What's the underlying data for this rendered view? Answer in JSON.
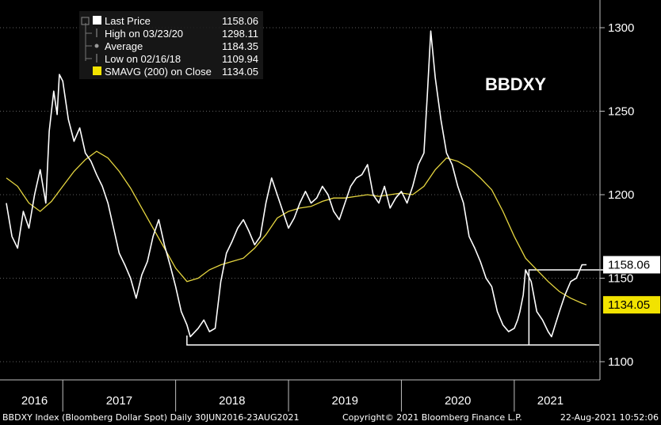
{
  "chart_data": {
    "type": "line",
    "title": "BBDXY",
    "colors": {
      "background": "#000000",
      "price": "#ffffff",
      "sma": "#e6d640",
      "grid": "#606060",
      "badge_sma": "#f2e300"
    },
    "y_axis": {
      "side": "right",
      "ylim": [
        1090,
        1320
      ],
      "ticks": [
        1100,
        1150,
        1200,
        1250,
        1300
      ]
    },
    "x_axis": {
      "labels": [
        "2016",
        "2017",
        "2018",
        "2019",
        "2020",
        "2021"
      ],
      "xlim": [
        2016.5,
        2021.64
      ]
    },
    "grid": true,
    "legend": {
      "placement": "top-left",
      "items": [
        {
          "label": "Last Price",
          "value": "1158.06",
          "icon": "filled-square-icon"
        },
        {
          "label": "High on 03/23/20",
          "value": "1298.11",
          "icon": "high-marker-icon"
        },
        {
          "label": "Average",
          "value": "1184.35",
          "icon": "average-marker-icon"
        },
        {
          "label": "Low on 02/16/18",
          "value": "1109.94",
          "icon": "low-marker-icon"
        },
        {
          "label": "SMAVG (200)  on Close",
          "value": "1134.05",
          "icon": "yellow-square-icon"
        }
      ]
    },
    "badges": {
      "last_price": "1158.06",
      "sma": "1134.05"
    },
    "series": [
      {
        "name": "Last Price",
        "x": [
          2016.5,
          2016.55,
          2016.6,
          2016.65,
          2016.7,
          2016.75,
          2016.8,
          2016.85,
          2016.88,
          2016.92,
          2016.95,
          2016.97,
          2017.0,
          2017.05,
          2017.1,
          2017.15,
          2017.2,
          2017.25,
          2017.3,
          2017.35,
          2017.4,
          2017.45,
          2017.5,
          2017.55,
          2017.6,
          2017.65,
          2017.7,
          2017.75,
          2017.8,
          2017.85,
          2017.9,
          2017.95,
          2018.0,
          2018.05,
          2018.1,
          2018.13,
          2018.2,
          2018.25,
          2018.3,
          2018.35,
          2018.4,
          2018.45,
          2018.5,
          2018.55,
          2018.6,
          2018.65,
          2018.7,
          2018.75,
          2018.8,
          2018.85,
          2018.9,
          2018.95,
          2019.0,
          2019.05,
          2019.1,
          2019.15,
          2019.2,
          2019.25,
          2019.3,
          2019.35,
          2019.4,
          2019.45,
          2019.5,
          2019.55,
          2019.6,
          2019.65,
          2019.7,
          2019.75,
          2019.8,
          2019.85,
          2019.9,
          2019.95,
          2020.0,
          2020.05,
          2020.1,
          2020.15,
          2020.2,
          2020.23,
          2020.26,
          2020.3,
          2020.35,
          2020.4,
          2020.45,
          2020.5,
          2020.55,
          2020.6,
          2020.65,
          2020.7,
          2020.75,
          2020.8,
          2020.85,
          2020.9,
          2020.95,
          2021.0,
          2021.03,
          2021.05,
          2021.08,
          2021.1,
          2021.15,
          2021.2,
          2021.25,
          2021.3,
          2021.33,
          2021.4,
          2021.45,
          2021.5,
          2021.55,
          2021.6,
          2021.64
        ],
        "values": [
          1195,
          1175,
          1168,
          1190,
          1180,
          1200,
          1215,
          1195,
          1238,
          1262,
          1248,
          1272,
          1268,
          1245,
          1232,
          1240,
          1225,
          1220,
          1212,
          1205,
          1195,
          1180,
          1165,
          1158,
          1150,
          1138,
          1152,
          1160,
          1175,
          1185,
          1170,
          1158,
          1145,
          1130,
          1122,
          1115,
          1120,
          1125,
          1118,
          1120,
          1148,
          1165,
          1172,
          1180,
          1185,
          1178,
          1170,
          1175,
          1195,
          1210,
          1200,
          1190,
          1180,
          1186,
          1195,
          1202,
          1195,
          1198,
          1205,
          1200,
          1190,
          1185,
          1195,
          1205,
          1210,
          1212,
          1218,
          1200,
          1195,
          1205,
          1192,
          1198,
          1202,
          1195,
          1205,
          1218,
          1225,
          1260,
          1298,
          1270,
          1245,
          1225,
          1218,
          1205,
          1195,
          1175,
          1168,
          1160,
          1150,
          1145,
          1130,
          1122,
          1118,
          1120,
          1125,
          1130,
          1140,
          1155,
          1148,
          1130,
          1125,
          1118,
          1115,
          1130,
          1140,
          1148,
          1150,
          1158,
          1158.06
        ]
      },
      {
        "name": "SMAVG (200)  on Close",
        "x": [
          2016.5,
          2016.6,
          2016.7,
          2016.8,
          2016.9,
          2017.0,
          2017.1,
          2017.2,
          2017.3,
          2017.4,
          2017.5,
          2017.6,
          2017.7,
          2017.8,
          2017.9,
          2018.0,
          2018.1,
          2018.2,
          2018.3,
          2018.4,
          2018.5,
          2018.6,
          2018.7,
          2018.8,
          2018.9,
          2019.0,
          2019.1,
          2019.2,
          2019.3,
          2019.4,
          2019.5,
          2019.6,
          2019.7,
          2019.8,
          2019.9,
          2020.0,
          2020.1,
          2020.2,
          2020.3,
          2020.4,
          2020.5,
          2020.6,
          2020.7,
          2020.8,
          2020.9,
          2021.0,
          2021.1,
          2021.2,
          2021.3,
          2021.4,
          2021.5,
          2021.6,
          2021.64
        ],
        "values": [
          1210,
          1205,
          1195,
          1190,
          1196,
          1205,
          1214,
          1221,
          1226,
          1222,
          1214,
          1204,
          1192,
          1180,
          1168,
          1156,
          1148,
          1150,
          1155,
          1158,
          1160,
          1162,
          1168,
          1176,
          1186,
          1190,
          1192,
          1193,
          1196,
          1198,
          1198,
          1199,
          1200,
          1199,
          1200,
          1201,
          1200,
          1205,
          1215,
          1222,
          1220,
          1216,
          1210,
          1203,
          1190,
          1175,
          1162,
          1155,
          1148,
          1142,
          1138,
          1135,
          1134.05
        ]
      }
    ],
    "annotations": {
      "low_box": {
        "x_start": 2018.1,
        "x_end": 2021.64,
        "y": 1110
      },
      "recent_box": {
        "x_start": 2021.13,
        "x_end": 2021.64,
        "y_top": 1155,
        "y_bottom": 1110
      }
    },
    "footer": {
      "left": "BBDXY Index (Bloomberg Dollar Spot)  Daily 30JUN2016-23AUG2021",
      "center": "Copyright© 2021 Bloomberg Finance L.P.",
      "right": "22-Aug-2021 10:52:06"
    }
  }
}
